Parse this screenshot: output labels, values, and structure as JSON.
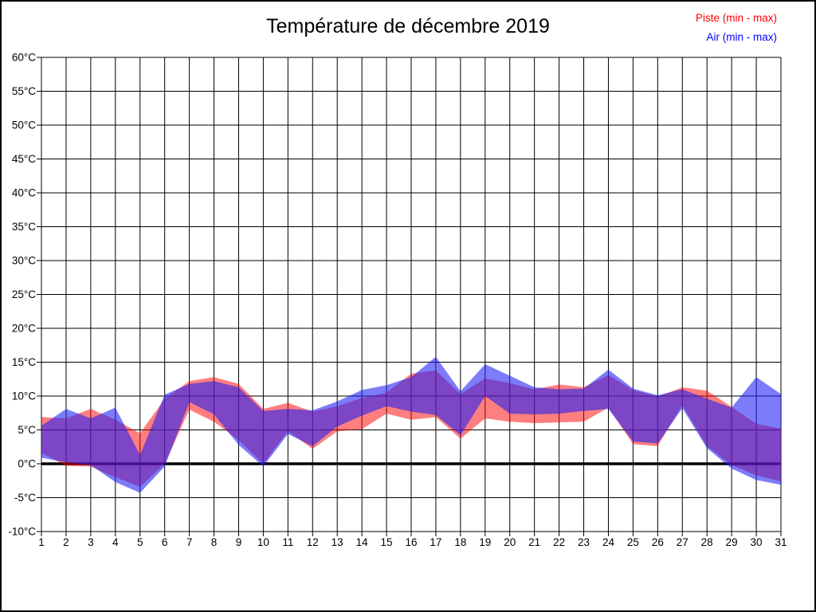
{
  "title": "Température de décembre 2019",
  "legend": {
    "items": [
      {
        "label": "Piste (min - max)",
        "color": "#ff0000"
      },
      {
        "label": "Air (min - max)",
        "color": "#0000ff"
      }
    ]
  },
  "chart_data": {
    "type": "area",
    "subtype": "min-max-bands",
    "title": "Température de décembre 2019",
    "xlabel": "",
    "ylabel": "",
    "grid": true,
    "zero_line_bold": true,
    "legend_position": "top-right",
    "ylim": [
      -10,
      60
    ],
    "y_step": 5,
    "x": [
      1,
      2,
      3,
      4,
      5,
      6,
      7,
      8,
      9,
      10,
      11,
      12,
      13,
      14,
      15,
      16,
      17,
      18,
      19,
      20,
      21,
      22,
      23,
      24,
      25,
      26,
      27,
      28,
      29,
      30,
      31
    ],
    "x_tick_labels": [
      "1",
      "2",
      "3",
      "4",
      "5",
      "6",
      "7",
      "8",
      "9",
      "10",
      "11",
      "12",
      "13",
      "14",
      "15",
      "16",
      "17",
      "18",
      "19",
      "20",
      "21",
      "22",
      "23",
      "24",
      "25",
      "26",
      "27",
      "28",
      "29",
      "30",
      "31"
    ],
    "y_tick_labels": [
      "60°C",
      "55°C",
      "50°C",
      "45°C",
      "40°C",
      "35°C",
      "30°C",
      "25°C",
      "20°C",
      "15°C",
      "10°C",
      "5°C",
      "0°C",
      "-5°C",
      "-10°C"
    ],
    "series": [
      {
        "id": "piste",
        "name": "Piste (min - max)",
        "fill": "#ff0000",
        "fill_opacity": 0.5,
        "min": [
          1.6,
          -0.3,
          -0.4,
          -2.0,
          -3.4,
          0.0,
          8.0,
          6.2,
          3.5,
          0.0,
          4.8,
          2.2,
          4.8,
          5.1,
          7.4,
          6.5,
          6.9,
          3.7,
          6.7,
          6.2,
          6.0,
          6.1,
          6.2,
          8.3,
          2.9,
          2.6,
          8.7,
          2.6,
          -0.2,
          -1.7,
          -2.6
        ],
        "max": [
          6.9,
          6.7,
          8.1,
          6.5,
          4.5,
          9.6,
          12.2,
          12.8,
          11.8,
          8.1,
          9.0,
          7.7,
          8.5,
          9.7,
          10.5,
          13.3,
          13.8,
          10.3,
          12.6,
          11.9,
          11.0,
          11.7,
          11.3,
          13.1,
          10.9,
          9.9,
          11.3,
          10.8,
          8.4,
          5.9,
          5.2
        ]
      },
      {
        "id": "air",
        "name": "Air (min - max)",
        "fill": "#1e1ef6",
        "fill_opacity": 0.58,
        "min": [
          0.9,
          0.2,
          -0.2,
          -2.7,
          -4.3,
          -0.4,
          9.1,
          7.3,
          2.8,
          -0.4,
          4.4,
          2.6,
          5.5,
          7.1,
          8.5,
          7.7,
          7.2,
          4.2,
          10.0,
          7.4,
          7.3,
          7.4,
          7.8,
          8.1,
          3.3,
          3.0,
          8.2,
          2.3,
          -0.7,
          -2.4,
          -3.1
        ],
        "max": [
          5.6,
          8.1,
          6.7,
          8.3,
          1.3,
          10.2,
          11.8,
          12.2,
          11.3,
          7.8,
          8.1,
          7.9,
          9.2,
          10.9,
          11.6,
          12.8,
          15.8,
          10.7,
          14.7,
          13.0,
          11.3,
          11.0,
          11.1,
          13.9,
          11.1,
          10.1,
          11.0,
          9.6,
          8.3,
          12.8,
          10.3
        ]
      }
    ]
  }
}
